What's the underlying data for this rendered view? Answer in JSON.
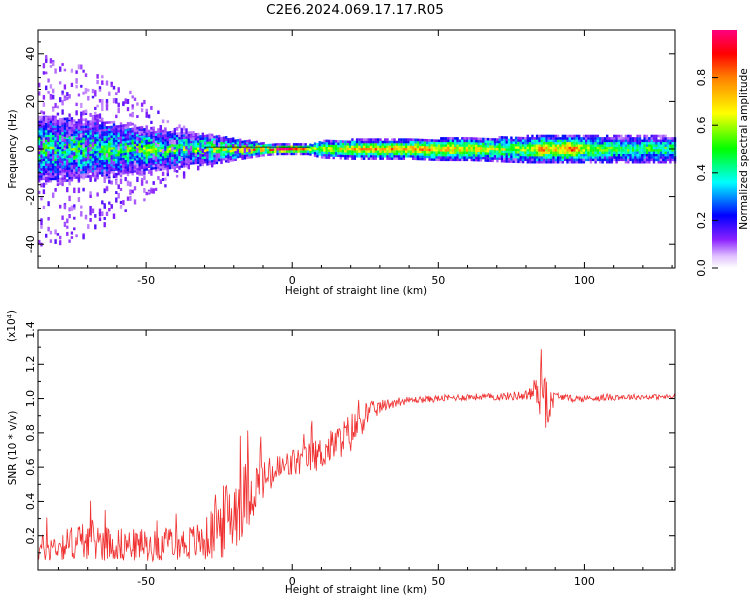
{
  "title": "C2E6.2024.069.17.17.R05",
  "chart_data": [
    {
      "type": "heatmap",
      "xlabel": "Height of straight line (km)",
      "ylabel": "Frequency (Hz)",
      "xlim": [
        -87,
        131
      ],
      "ylim": [
        -50,
        50
      ],
      "xticks": [
        -50,
        0,
        50,
        100
      ],
      "yticks": [
        -40,
        -20,
        0,
        20,
        40
      ],
      "xtick_labels": [
        "-50",
        "0",
        "50",
        "100"
      ],
      "ytick_labels": [
        "-40",
        "-20",
        "0",
        "20",
        "40"
      ],
      "colorbar": {
        "label": "Normalized spectral amplitude",
        "range": [
          0,
          1
        ],
        "ticks": [
          0.0,
          0.2,
          0.4,
          0.6,
          0.8
        ],
        "tick_labels": [
          "0.0",
          "0.2",
          "0.4",
          "0.6",
          "0.8"
        ],
        "colormap": [
          "#e8ccff",
          "#7a00ff",
          "#0000ff",
          "#00ffff",
          "#00ff00",
          "#ffff00",
          "#ff8000",
          "#ff0000",
          "#ff00a0"
        ]
      },
      "profile": {
        "x": [
          -87,
          -80,
          -70,
          -60,
          -50,
          -40,
          -30,
          -20,
          -15,
          -10,
          -5,
          0,
          5,
          10,
          20,
          30,
          40,
          50,
          60,
          70,
          80,
          85,
          90,
          95,
          100,
          110,
          120,
          131
        ],
        "spread_hz": [
          12,
          12,
          11,
          10,
          8,
          6,
          5,
          3,
          2,
          1,
          0.5,
          0.5,
          0.5,
          2,
          2.5,
          2.5,
          2.5,
          3,
          3,
          3.5,
          4,
          4,
          4,
          4,
          4,
          4,
          4,
          4
        ],
        "scatter_hz": [
          40,
          40,
          35,
          28,
          20,
          12,
          8,
          4,
          2,
          1,
          0,
          0,
          0,
          1,
          1,
          1,
          1,
          1,
          1,
          1,
          1,
          1,
          1,
          1,
          1,
          1,
          1,
          1
        ],
        "peak_amplitude": [
          0.55,
          0.5,
          0.5,
          0.5,
          0.55,
          0.55,
          0.6,
          0.7,
          0.8,
          0.9,
          0.95,
          0.95,
          0.7,
          0.6,
          0.7,
          0.75,
          0.8,
          0.75,
          0.7,
          0.6,
          0.6,
          0.8,
          0.7,
          0.9,
          0.6,
          0.55,
          0.5,
          0.5
        ]
      }
    },
    {
      "type": "line",
      "xlabel": "Height of straight line (km)",
      "ylabel": "SNR (10 * v/v)",
      "multiplier_label": "(x10⁴)",
      "xlim": [
        -87,
        131
      ],
      "ylim": [
        0,
        1.4
      ],
      "xticks": [
        -50,
        0,
        50,
        100
      ],
      "yticks": [
        0.2,
        0.4,
        0.6,
        0.8,
        1.0,
        1.2,
        1.4
      ],
      "xtick_labels": [
        "-50",
        "0",
        "50",
        "100"
      ],
      "ytick_labels": [
        "0.2",
        "0.4",
        "0.6",
        "0.8",
        "1.0",
        "1.2",
        "1.4"
      ],
      "series": [
        {
          "name": "SNR",
          "color": "#f03030",
          "x": [
            -87,
            -80,
            -70,
            -60,
            -50,
            -40,
            -30,
            -25,
            -20,
            -15,
            -10,
            -5,
            0,
            5,
            10,
            15,
            20,
            25,
            30,
            35,
            40,
            50,
            60,
            70,
            80,
            84,
            86,
            88,
            90,
            95,
            100,
            110,
            120,
            131
          ],
          "values": [
            0.12,
            0.14,
            0.18,
            0.15,
            0.14,
            0.15,
            0.17,
            0.25,
            0.35,
            0.45,
            0.52,
            0.58,
            0.62,
            0.65,
            0.68,
            0.74,
            0.8,
            0.9,
            0.95,
            0.98,
            0.99,
            1.0,
            1.01,
            1.01,
            1.02,
            1.05,
            1.1,
            0.95,
            1.02,
            1.0,
            1.0,
            1.01,
            1.01,
            1.01
          ],
          "noise": [
            0.08,
            0.09,
            0.12,
            0.1,
            0.09,
            0.09,
            0.12,
            0.2,
            0.25,
            0.2,
            0.12,
            0.1,
            0.09,
            0.09,
            0.1,
            0.1,
            0.12,
            0.08,
            0.04,
            0.03,
            0.02,
            0.02,
            0.02,
            0.02,
            0.03,
            0.1,
            0.3,
            0.1,
            0.02,
            0.02,
            0.02,
            0.02,
            0.015,
            0.015
          ]
        }
      ]
    }
  ]
}
